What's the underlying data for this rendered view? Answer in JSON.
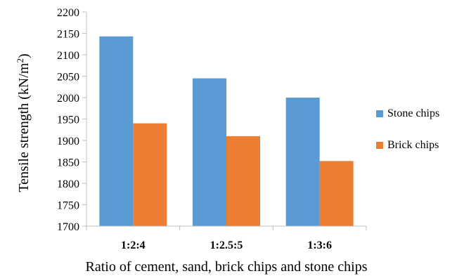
{
  "chart_data": {
    "type": "bar",
    "categories": [
      "1:2:4",
      "1:2.5:5",
      "1:3:6"
    ],
    "series": [
      {
        "name": "Stone chips",
        "color": "#5b9bd5",
        "values": [
          2143,
          2045,
          2000
        ]
      },
      {
        "name": "Brick chips",
        "color": "#ed7d31",
        "values": [
          1940,
          1910,
          1852
        ]
      }
    ],
    "xlabel": "Ratio of cement, sand, brick chips and stone chips",
    "ylabel": {
      "prefix": "Tensile strength (kN/m",
      "sup": "2",
      "suffix": ")"
    },
    "ylim": [
      1700,
      2200
    ],
    "yticks": [
      "1700",
      "1750",
      "1800",
      "1850",
      "1900",
      "1950",
      "2000",
      "2050",
      "2100",
      "2150",
      "2200"
    ],
    "grid": false,
    "legend_position": "right"
  }
}
